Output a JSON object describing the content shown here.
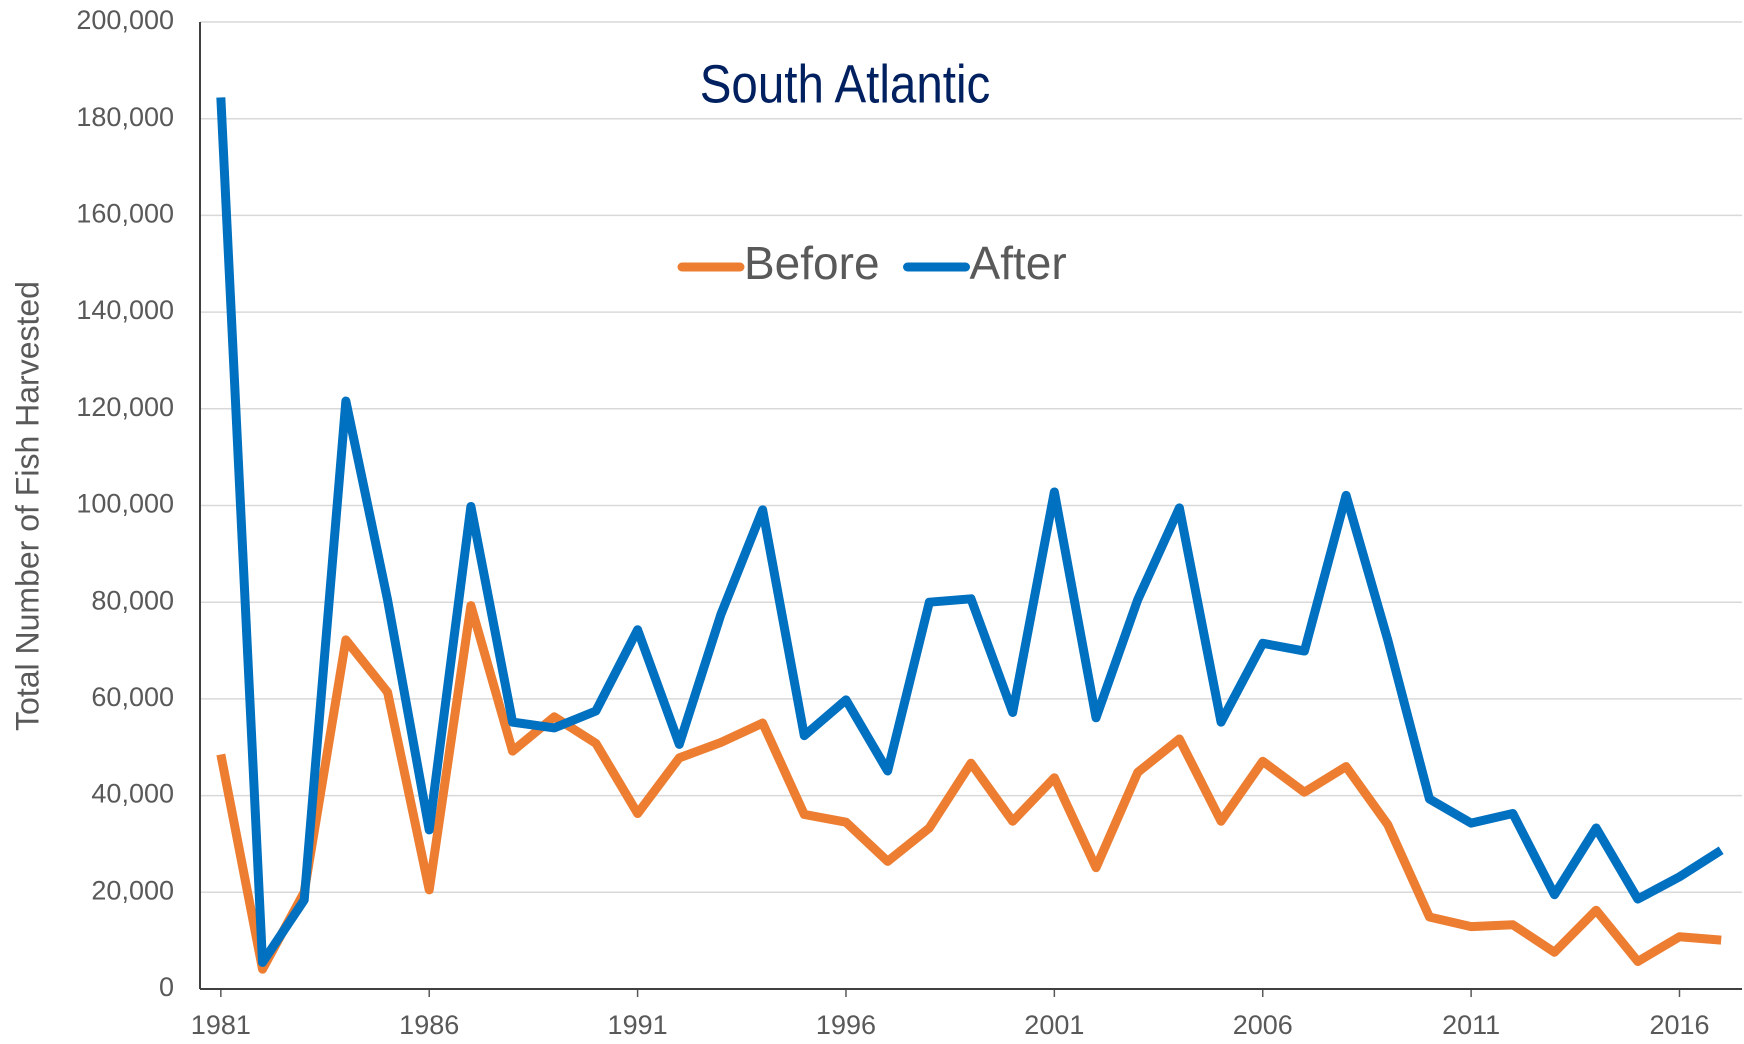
{
  "chart_data": {
    "type": "line",
    "title": "South Atlantic",
    "y_label": "Total Number of Fish Harvested",
    "x": [
      1981,
      1982,
      1983,
      1984,
      1985,
      1986,
      1987,
      1988,
      1989,
      1990,
      1991,
      1992,
      1993,
      1994,
      1995,
      1996,
      1997,
      1998,
      1999,
      2000,
      2001,
      2002,
      2003,
      2004,
      2005,
      2006,
      2007,
      2008,
      2009,
      2010,
      2011,
      2012,
      2013,
      2014,
      2015,
      2016,
      2017
    ],
    "series": [
      {
        "name": "Before",
        "color": "#ed7d31",
        "values": [
          48500,
          4100,
          20000,
          72200,
          61400,
          20500,
          79300,
          49200,
          56300,
          50800,
          36300,
          47800,
          51000,
          55000,
          36100,
          34500,
          26400,
          33300,
          46700,
          34700,
          43700,
          25100,
          44800,
          51700,
          34700,
          47100,
          40700,
          46000,
          34000,
          14900,
          12900,
          13300,
          7600,
          16300,
          5700,
          10800,
          10100
        ]
      },
      {
        "name": "After",
        "color": "#0070c0",
        "values": [
          184400,
          5500,
          18400,
          121600,
          80500,
          32900,
          99800,
          55200,
          54000,
          57500,
          74300,
          50600,
          77500,
          99100,
          52400,
          59800,
          45100,
          80000,
          80700,
          57200,
          102800,
          56100,
          80500,
          99500,
          55200,
          71500,
          69900,
          102100,
          72200,
          39300,
          34300,
          36300,
          19500,
          33300,
          18600,
          23200,
          28700
        ]
      }
    ],
    "xlim": [
      1980.5,
      2017.5
    ],
    "xticks": [
      1981,
      1986,
      1991,
      1996,
      2001,
      2006,
      2011,
      2016
    ],
    "ylim": [
      0,
      200000
    ],
    "yticks": [
      0,
      {
        "value": 20000,
        "label": "20,000"
      },
      {
        "value": 40000,
        "label": "40,000"
      },
      {
        "value": 60000,
        "label": "60,000"
      },
      {
        "value": 80000,
        "label": "80,000"
      },
      {
        "value": 100000,
        "label": "100,000"
      },
      {
        "value": 120000,
        "label": "120,000"
      },
      {
        "value": 140000,
        "label": "140,000"
      },
      {
        "value": 160000,
        "label": "160,000"
      },
      {
        "value": 180000,
        "label": "180,000"
      },
      {
        "value": 200000,
        "label": "200,000"
      }
    ],
    "grid": true,
    "legend": "top"
  }
}
